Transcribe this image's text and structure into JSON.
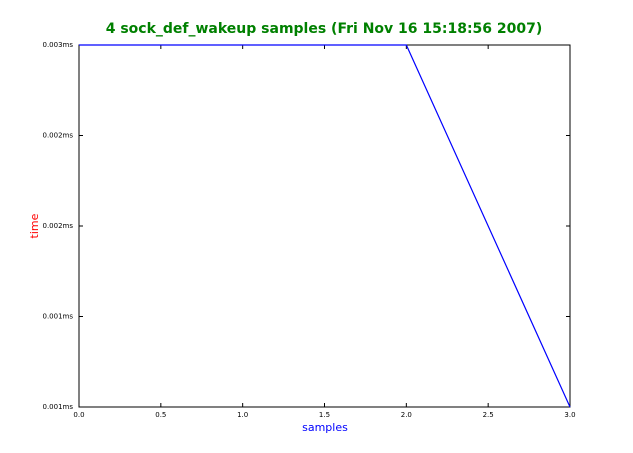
{
  "chart_data": {
    "type": "line",
    "title": "4 sock_def_wakeup samples (Fri Nov 16 15:18:56 2007)",
    "x_label": "samples",
    "y_label": "time",
    "x": [
      0,
      1,
      2,
      3
    ],
    "series": [
      {
        "color": "#0000ff",
        "values": [
          0.003,
          0.003,
          0.003,
          0.001
        ]
      }
    ],
    "xlim": [
      0,
      3
    ],
    "xticks": [
      {
        "value": 0,
        "label": "0.0"
      },
      {
        "value": 0.5,
        "label": "0.5"
      },
      {
        "value": 1,
        "label": "1.0"
      },
      {
        "value": 1.5,
        "label": "1.5"
      },
      {
        "value": 2,
        "label": "2.0"
      },
      {
        "value": 2.5,
        "label": "2.5"
      },
      {
        "value": 3,
        "label": "3.0"
      }
    ],
    "ylim": [
      0.001,
      0.003
    ],
    "yticks": [
      {
        "value": 0.001,
        "label": "0.001ms"
      },
      {
        "value": 0.0015,
        "label": "0.001ms"
      },
      {
        "value": 0.002,
        "label": "0.002ms"
      },
      {
        "value": 0.0025,
        "label": "0.002ms"
      },
      {
        "value": 0.003,
        "label": "0.003ms"
      }
    ],
    "title_color": "#008000",
    "x_label_color": "#0000ff",
    "y_label_color": "#ff0000"
  }
}
